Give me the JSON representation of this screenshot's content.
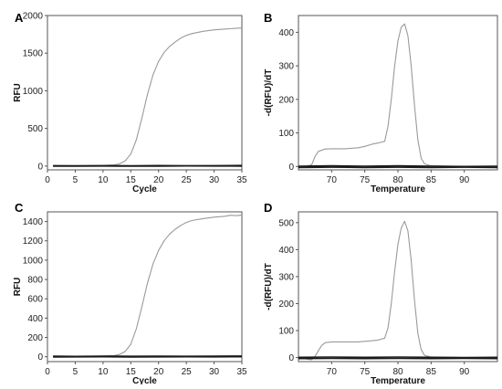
{
  "colors": {
    "amplified": "#9a9a9a",
    "negative": "#1a1a1a",
    "axis": "#555555"
  },
  "chart_data": [
    {
      "panel": "A",
      "type": "line",
      "xlabel": "Cycle",
      "ylabel": "RFU",
      "xlim": [
        0,
        35
      ],
      "ylim": [
        -50,
        2000
      ],
      "xticks": [
        0,
        5,
        10,
        15,
        20,
        25,
        30,
        35
      ],
      "yticks": [
        0,
        500,
        1000,
        1500,
        2000
      ],
      "series": [
        {
          "role": "amplified",
          "x": [
            1,
            5,
            10,
            12,
            13,
            14,
            15,
            16,
            17,
            18,
            19,
            20,
            21,
            22,
            23,
            24,
            25,
            26,
            28,
            30,
            32,
            35
          ],
          "y": [
            5,
            5,
            8,
            15,
            30,
            70,
            160,
            350,
            640,
            950,
            1210,
            1390,
            1510,
            1590,
            1650,
            1700,
            1735,
            1760,
            1790,
            1810,
            1820,
            1835
          ]
        },
        {
          "role": "negative",
          "x": [
            1,
            5,
            10,
            15,
            20,
            25,
            30,
            35
          ],
          "y": [
            6,
            4,
            6,
            5,
            7,
            5,
            6,
            8
          ]
        },
        {
          "role": "negative",
          "x": [
            1,
            5,
            10,
            15,
            20,
            25,
            30,
            35
          ],
          "y": [
            -2,
            0,
            1,
            -1,
            0,
            2,
            1,
            0
          ]
        }
      ]
    },
    {
      "panel": "B",
      "type": "line",
      "xlabel": "Temperature",
      "ylabel": "-d(RFU)/dT",
      "xlim": [
        65,
        95
      ],
      "ylim": [
        -10,
        450
      ],
      "xticks": [
        70,
        75,
        80,
        85,
        90
      ],
      "yticks": [
        0,
        100,
        200,
        300,
        400
      ],
      "series": [
        {
          "role": "amplified",
          "x": [
            65,
            66,
            67,
            67.5,
            68,
            69,
            70,
            72,
            74,
            75,
            76,
            77,
            78,
            78.5,
            79,
            79.5,
            80,
            80.5,
            81,
            81.5,
            82,
            82.5,
            83,
            83.5,
            84,
            85,
            90,
            95
          ],
          "y": [
            0,
            0,
            5,
            30,
            45,
            52,
            53,
            53,
            56,
            60,
            66,
            70,
            75,
            120,
            200,
            300,
            375,
            415,
            425,
            390,
            300,
            180,
            80,
            25,
            8,
            2,
            0,
            0
          ]
        },
        {
          "role": "negative",
          "x": [
            65,
            70,
            75,
            80,
            85,
            90,
            95
          ],
          "y": [
            1,
            2,
            1,
            2,
            1,
            0,
            1
          ]
        },
        {
          "role": "negative",
          "x": [
            65,
            70,
            75,
            80,
            85,
            90,
            95
          ],
          "y": [
            -3,
            -2,
            -3,
            -2,
            -3,
            -2,
            -3
          ]
        }
      ]
    },
    {
      "panel": "C",
      "type": "line",
      "xlabel": "Cycle",
      "ylabel": "RFU",
      "xlim": [
        0,
        35
      ],
      "ylim": [
        -50,
        1500
      ],
      "xticks": [
        0,
        5,
        10,
        15,
        20,
        25,
        30,
        35
      ],
      "yticks": [
        0,
        200,
        400,
        600,
        800,
        1000,
        1200,
        1400
      ],
      "series": [
        {
          "role": "amplified",
          "x": [
            1,
            5,
            10,
            12,
            13,
            14,
            15,
            16,
            17,
            18,
            19,
            20,
            21,
            22,
            23,
            24,
            25,
            26,
            28,
            30,
            32,
            33,
            34,
            35
          ],
          "y": [
            5,
            5,
            8,
            12,
            25,
            55,
            130,
            290,
            520,
            760,
            960,
            1100,
            1200,
            1270,
            1320,
            1360,
            1390,
            1410,
            1430,
            1445,
            1455,
            1465,
            1460,
            1468
          ]
        },
        {
          "role": "negative",
          "x": [
            1,
            5,
            10,
            15,
            20,
            25,
            30,
            35
          ],
          "y": [
            6,
            4,
            7,
            5,
            6,
            5,
            7,
            8
          ]
        },
        {
          "role": "negative",
          "x": [
            1,
            5,
            10,
            15,
            20,
            25,
            30,
            35
          ],
          "y": [
            -3,
            -1,
            0,
            -2,
            -1,
            0,
            -1,
            0
          ]
        }
      ]
    },
    {
      "panel": "D",
      "type": "line",
      "xlabel": "Temperature",
      "ylabel": "-d(RFU)/dT",
      "xlim": [
        65,
        95
      ],
      "ylim": [
        -15,
        540
      ],
      "xticks": [
        70,
        75,
        80,
        85,
        90
      ],
      "yticks": [
        0,
        100,
        200,
        300,
        400,
        500
      ],
      "series": [
        {
          "role": "amplified",
          "x": [
            65,
            66,
            67,
            67.5,
            68,
            68.5,
            69,
            70,
            72,
            74,
            76,
            77,
            78,
            78.5,
            79,
            79.5,
            80,
            80.5,
            81,
            81.5,
            82,
            82.5,
            83,
            83.5,
            84,
            85,
            90,
            95
          ],
          "y": [
            0,
            -5,
            -8,
            5,
            25,
            45,
            55,
            58,
            58,
            58,
            62,
            65,
            72,
            110,
            200,
            320,
            420,
            480,
            505,
            470,
            360,
            210,
            90,
            30,
            8,
            2,
            0,
            0
          ]
        },
        {
          "role": "negative",
          "x": [
            65,
            70,
            75,
            80,
            85,
            90,
            95
          ],
          "y": [
            1,
            2,
            1,
            2,
            1,
            0,
            1
          ]
        },
        {
          "role": "negative",
          "x": [
            65,
            70,
            75,
            80,
            85,
            90,
            95
          ],
          "y": [
            -4,
            -3,
            -4,
            -3,
            -4,
            -3,
            -4
          ]
        }
      ]
    }
  ]
}
